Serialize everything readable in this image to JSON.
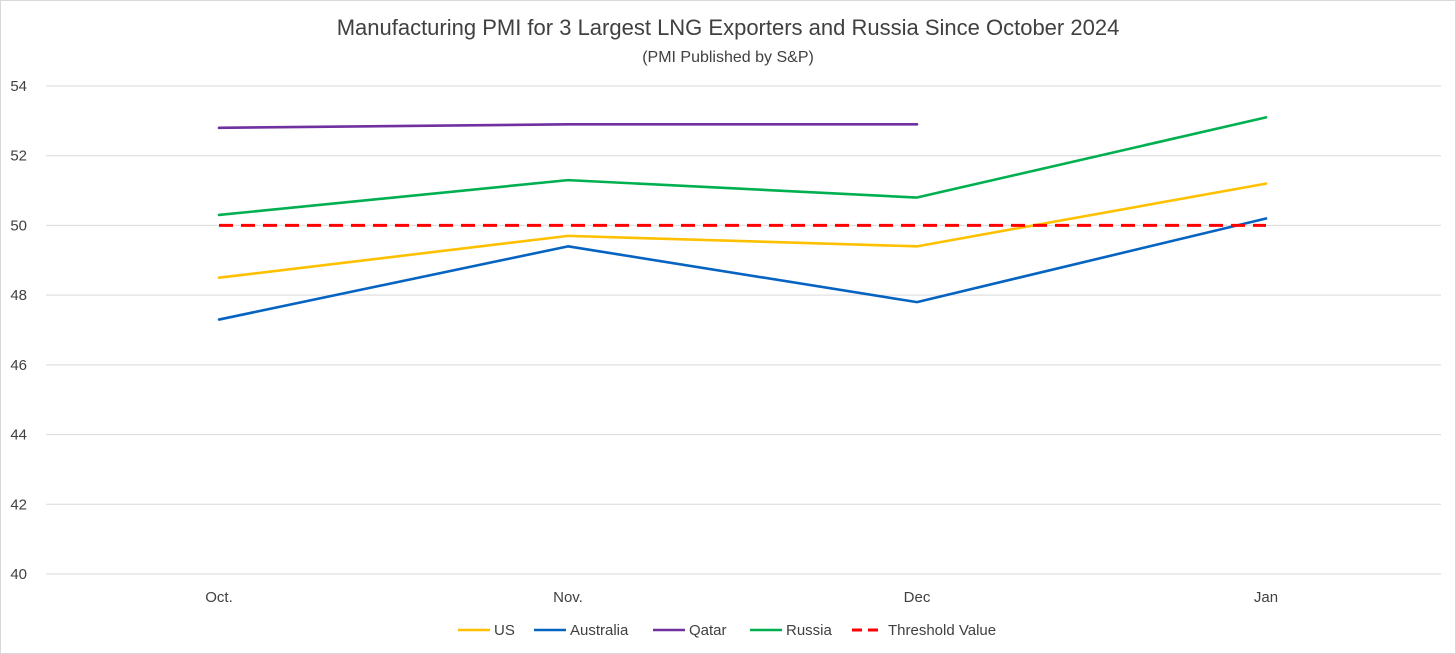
{
  "chart_data": {
    "type": "line",
    "title": "Manufacturing PMI for 3 Largest LNG Exporters and Russia Since October 2024",
    "subtitle": "(PMI Published by S&P)",
    "categories": [
      "Oct.",
      "Nov.",
      "Dec",
      "Jan"
    ],
    "ylim": [
      40,
      54
    ],
    "yticks": [
      40,
      42,
      44,
      46,
      48,
      50,
      52,
      54
    ],
    "grid": true,
    "legend_position": "bottom",
    "series": [
      {
        "name": "US",
        "values": [
          48.5,
          49.7,
          49.4,
          51.2
        ],
        "color": "#ffc000",
        "dashed": false
      },
      {
        "name": "Australia",
        "values": [
          47.3,
          49.4,
          47.8,
          50.2
        ],
        "color": "#0563c1",
        "dashed": false
      },
      {
        "name": "Qatar",
        "values": [
          52.8,
          52.9,
          52.9,
          null
        ],
        "color": "#7030a0",
        "dashed": false
      },
      {
        "name": "Russia",
        "values": [
          50.3,
          51.3,
          50.8,
          53.1
        ],
        "color": "#00b050",
        "dashed": false
      },
      {
        "name": "Threshold Value",
        "values": [
          50,
          50,
          50,
          50
        ],
        "color": "#ff0000",
        "dashed": true
      }
    ]
  }
}
